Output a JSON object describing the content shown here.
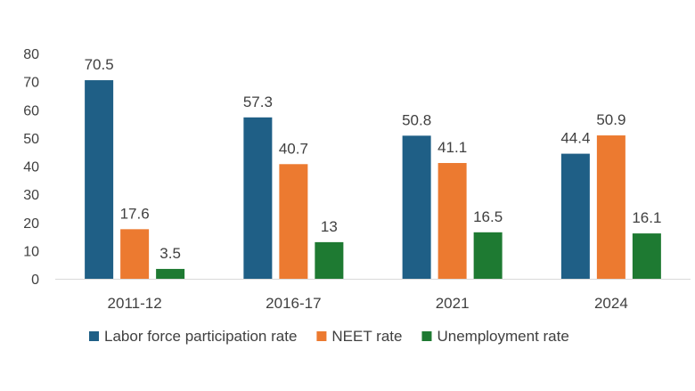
{
  "chart_data": {
    "type": "bar",
    "categories": [
      "2011-12",
      "2016-17",
      "2021",
      "2024"
    ],
    "series": [
      {
        "name": "Labor force participation rate",
        "values": [
          70.5,
          57.3,
          50.8,
          44.4
        ],
        "labels": [
          "70.5",
          "57.3",
          "50.8",
          "44.4"
        ],
        "color": "#1f5f86"
      },
      {
        "name": "NEET rate",
        "values": [
          17.6,
          40.7,
          41.1,
          50.9
        ],
        "labels": [
          "17.6",
          "40.7",
          "41.1",
          "50.9"
        ],
        "color": "#ec7a30"
      },
      {
        "name": "Unemployment rate",
        "values": [
          3.5,
          13,
          16.5,
          16.1
        ],
        "labels": [
          "3.5",
          "13",
          "16.5",
          "16.1"
        ],
        "color": "#1e7a32"
      }
    ],
    "yticks": [
      "0",
      "10",
      "20",
      "30",
      "40",
      "50",
      "60",
      "70",
      "80"
    ],
    "ylim": [
      0,
      80
    ],
    "grid": false,
    "legend_position": "bottom",
    "title": "",
    "xlabel": "",
    "ylabel": ""
  }
}
